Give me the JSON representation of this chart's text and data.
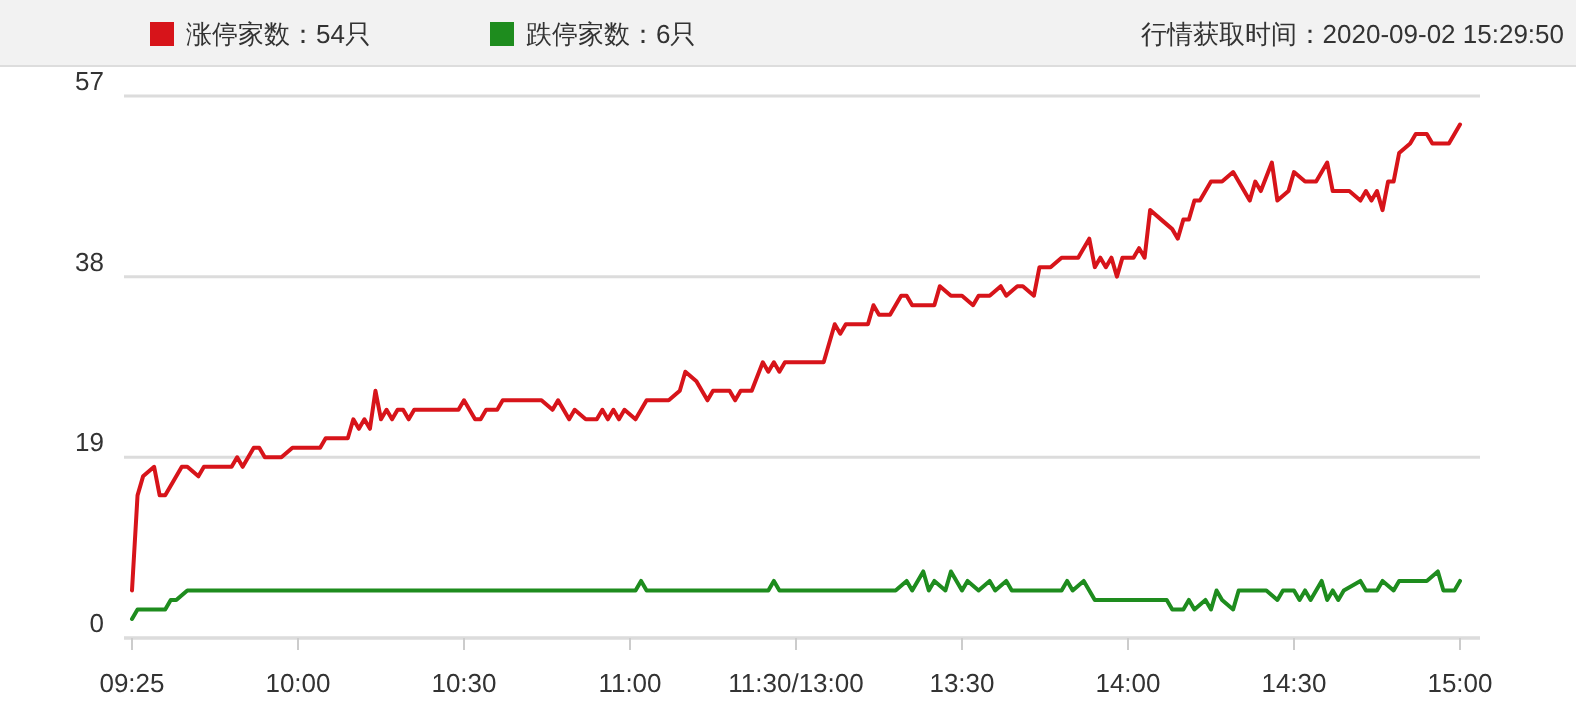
{
  "chart_data": {
    "type": "line",
    "annotations": [
      "行情获取时间：2020-09-02 15:29:50"
    ],
    "categories": [
      "09:25",
      null,
      null,
      null,
      null,
      null,
      null,
      null,
      null,
      null,
      null,
      null,
      null,
      null,
      null,
      null,
      null,
      null,
      null,
      null,
      null,
      null,
      null,
      null,
      null,
      null,
      null,
      null,
      null,
      null,
      "10:00",
      null,
      null,
      null,
      null,
      null,
      null,
      null,
      null,
      null,
      null,
      null,
      null,
      null,
      null,
      null,
      null,
      null,
      null,
      null,
      null,
      null,
      null,
      null,
      null,
      null,
      null,
      null,
      null,
      null,
      "10:30",
      null,
      null,
      null,
      null,
      null,
      null,
      null,
      null,
      null,
      null,
      null,
      null,
      null,
      null,
      null,
      null,
      null,
      null,
      null,
      null,
      null,
      null,
      null,
      null,
      null,
      null,
      null,
      null,
      null,
      "11:00",
      null,
      null,
      null,
      null,
      null,
      null,
      null,
      null,
      null,
      null,
      null,
      null,
      null,
      null,
      null,
      null,
      null,
      null,
      null,
      null,
      null,
      null,
      null,
      null,
      null,
      null,
      null,
      null,
      null,
      "11:30/13:00",
      null,
      null,
      null,
      null,
      null,
      null,
      null,
      null,
      null,
      null,
      null,
      null,
      null,
      null,
      null,
      null,
      null,
      null,
      null,
      null,
      null,
      null,
      null,
      null,
      null,
      null,
      null,
      null,
      null,
      "13:30",
      null,
      null,
      null,
      null,
      null,
      null,
      null,
      null,
      null,
      null,
      null,
      null,
      null,
      null,
      null,
      null,
      null,
      null,
      null,
      null,
      null,
      null,
      null,
      null,
      null,
      null,
      null,
      null,
      null,
      "14:00",
      null,
      null,
      null,
      null,
      null,
      null,
      null,
      null,
      null,
      null,
      null,
      null,
      null,
      null,
      null,
      null,
      null,
      null,
      null,
      null,
      null,
      null,
      null,
      null,
      null,
      null,
      null,
      null,
      null,
      "14:30",
      null,
      null,
      null,
      null,
      null,
      null,
      null,
      null,
      null,
      null,
      null,
      null,
      null,
      null,
      null,
      null,
      null,
      null,
      null,
      null,
      null,
      null,
      null,
      null,
      null,
      null,
      null,
      null,
      null,
      "15:00"
    ],
    "ylim": [
      0,
      57
    ],
    "yticks": [
      0,
      19,
      38,
      57
    ],
    "grid": "y",
    "legend": "top left",
    "marker": "none",
    "line_style": "solid",
    "series": [
      {
        "name": "涨停家数：54只",
        "color": "#d7141a",
        "values": [
          5,
          15,
          17,
          null,
          18,
          15,
          15,
          null,
          null,
          18,
          18,
          null,
          17,
          18,
          null,
          null,
          null,
          null,
          18,
          19,
          18,
          null,
          20,
          20,
          19,
          null,
          null,
          19,
          null,
          20,
          null,
          null,
          null,
          null,
          20,
          21,
          null,
          null,
          null,
          21,
          23,
          22,
          23,
          22,
          26,
          23,
          24,
          23,
          24,
          24,
          23,
          24,
          null,
          null,
          null,
          null,
          null,
          null,
          null,
          24,
          25,
          null,
          23,
          23,
          24,
          null,
          24,
          25,
          null,
          null,
          null,
          null,
          null,
          null,
          25,
          null,
          24,
          25,
          24,
          23,
          24,
          null,
          23,
          null,
          23,
          24,
          23,
          24,
          23,
          24,
          null,
          23,
          null,
          25,
          null,
          null,
          null,
          25,
          null,
          26,
          28,
          null,
          27,
          null,
          25,
          26,
          null,
          null,
          26,
          25,
          26,
          null,
          26,
          null,
          29,
          28,
          29,
          28,
          29,
          null,
          29,
          null,
          null,
          null,
          null,
          29,
          null,
          33,
          32,
          33,
          null,
          null,
          null,
          33,
          35,
          34,
          null,
          34,
          null,
          36,
          36,
          35,
          null,
          null,
          null,
          35,
          37,
          null,
          36,
          null,
          36,
          null,
          35,
          36,
          null,
          36,
          null,
          37,
          36,
          null,
          37,
          37,
          null,
          36,
          39,
          null,
          39,
          null,
          40,
          null,
          null,
          40,
          null,
          42,
          39,
          40,
          39,
          40,
          38,
          40,
          null,
          40,
          41,
          40,
          45,
          null,
          44,
          null,
          43,
          42,
          44,
          44,
          46,
          46,
          null,
          48,
          null,
          48,
          null,
          49,
          48,
          null,
          46,
          48,
          47,
          null,
          50,
          46,
          null,
          47,
          49,
          null,
          48,
          null,
          48,
          null,
          50,
          47,
          null,
          null,
          47,
          null,
          46,
          47,
          46,
          47,
          45,
          48,
          48,
          51,
          null,
          52,
          53,
          null,
          53,
          52,
          52,
          null,
          52,
          null,
          54
        ]
      },
      {
        "name": "跌停家数：6只",
        "color": "#1e8c1e",
        "values": [
          2,
          3,
          null,
          null,
          null,
          null,
          3,
          4,
          4,
          null,
          5,
          null,
          null,
          null,
          null,
          null,
          null,
          null,
          null,
          null,
          null,
          null,
          null,
          null,
          null,
          null,
          null,
          null,
          null,
          null,
          null,
          null,
          null,
          null,
          null,
          null,
          null,
          null,
          null,
          null,
          null,
          null,
          null,
          null,
          null,
          null,
          null,
          null,
          null,
          null,
          null,
          null,
          null,
          null,
          null,
          null,
          null,
          null,
          null,
          null,
          null,
          null,
          null,
          null,
          null,
          null,
          null,
          null,
          null,
          null,
          null,
          null,
          null,
          null,
          null,
          null,
          null,
          null,
          null,
          null,
          null,
          null,
          null,
          null,
          null,
          null,
          null,
          null,
          null,
          null,
          null,
          5,
          6,
          5,
          null,
          null,
          null,
          null,
          null,
          null,
          null,
          null,
          null,
          null,
          null,
          null,
          null,
          null,
          null,
          null,
          null,
          null,
          null,
          null,
          null,
          5,
          6,
          5,
          null,
          null,
          null,
          null,
          null,
          null,
          null,
          null,
          null,
          null,
          null,
          null,
          null,
          null,
          null,
          null,
          null,
          null,
          null,
          null,
          5,
          null,
          6,
          5,
          6,
          7,
          5,
          6,
          null,
          5,
          7,
          null,
          5,
          6,
          null,
          5,
          null,
          6,
          5,
          null,
          6,
          5,
          null,
          null,
          null,
          null,
          null,
          null,
          null,
          null,
          5,
          6,
          5,
          null,
          6,
          null,
          4,
          null,
          null,
          null,
          null,
          null,
          null,
          null,
          null,
          null,
          null,
          null,
          null,
          4,
          3,
          null,
          3,
          4,
          3,
          null,
          4,
          3,
          5,
          4,
          null,
          3,
          5,
          null,
          null,
          null,
          null,
          5,
          null,
          4,
          5,
          null,
          5,
          4,
          5,
          4,
          null,
          6,
          4,
          5,
          4,
          5,
          null,
          null,
          6,
          5,
          null,
          5,
          6,
          null,
          5,
          6,
          null,
          null,
          null,
          null,
          6,
          null,
          7,
          5,
          null,
          5,
          6
        ]
      }
    ]
  }
}
